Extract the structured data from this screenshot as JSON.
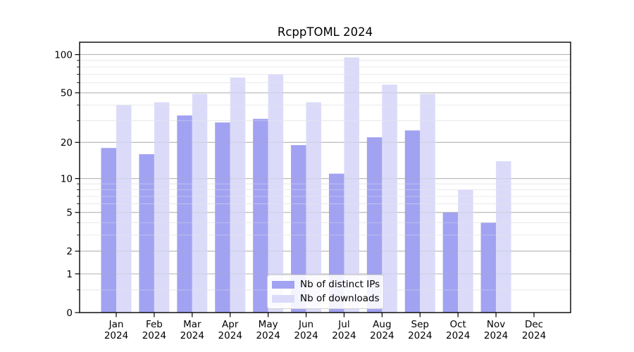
{
  "chart_data": {
    "type": "bar",
    "title": "RcppTOML 2024",
    "categories": [
      "Jan",
      "Feb",
      "Mar",
      "Apr",
      "May",
      "Jun",
      "Jul",
      "Aug",
      "Sep",
      "Oct",
      "Nov",
      "Dec"
    ],
    "year_label": "2024",
    "series": [
      {
        "name": "Nb of distinct IPs",
        "color": "#a2a2f2",
        "values": [
          18,
          16,
          33,
          29,
          31,
          19,
          11,
          22,
          25,
          5,
          4,
          0
        ]
      },
      {
        "name": "Nb of downloads",
        "color": "#dbdbf9",
        "values": [
          40,
          42,
          49,
          66,
          70,
          42,
          95,
          58,
          49,
          8,
          14,
          0
        ]
      }
    ],
    "yscale": "log1p",
    "yticks": [
      0,
      1,
      2,
      5,
      10,
      20,
      50,
      100
    ],
    "minor_yticks": [
      0.5,
      3,
      4,
      6,
      7,
      8,
      9,
      30,
      40,
      60,
      70,
      80,
      90
    ],
    "ylim": [
      0,
      125
    ],
    "xlabel": "",
    "ylabel": "",
    "grid": "on",
    "legend_position": "lower center",
    "colors": {
      "grid_major": "#b0b0b0",
      "grid_minor": "#e8e8e8",
      "spine": "#000000",
      "background": "#ffffff"
    }
  }
}
